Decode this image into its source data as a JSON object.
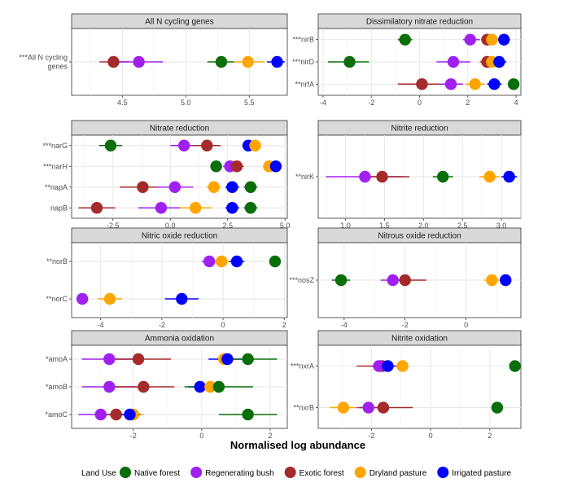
{
  "figure": {
    "xlabel": "Normalised log abundance",
    "legend_title": "Land Use",
    "colors": {
      "Native forest": "#0a6e0a",
      "Regenerating bush": "#a020f0",
      "Exotic forest": "#a52a2a",
      "Dryland pasture": "#ffa500",
      "Irrigated pasture": "#0000ff"
    }
  },
  "legend": [
    {
      "label": "Native forest"
    },
    {
      "label": "Regenerating bush"
    },
    {
      "label": "Exotic forest"
    },
    {
      "label": "Dryland pasture"
    },
    {
      "label": "Irrigated pasture"
    }
  ],
  "chart_data": [
    {
      "type": "scatter",
      "title": "All N cycling genes",
      "xlim": [
        4.1,
        5.8
      ],
      "ticks": [
        4.5,
        5.0,
        5.5
      ],
      "tick_labels": [
        "4.5",
        "5.0",
        "5.5"
      ],
      "rows": [
        {
          "label": "***All N cycling\ngenes",
          "points": [
            {
              "series": "Exotic forest",
              "value": 4.43,
              "lo": 4.32,
              "hi": 4.55
            },
            {
              "series": "Regenerating bush",
              "value": 4.63,
              "lo": 4.47,
              "hi": 4.82
            },
            {
              "series": "Native forest",
              "value": 5.28,
              "lo": 5.17,
              "hi": 5.38
            },
            {
              "series": "Dryland pasture",
              "value": 5.49,
              "lo": 5.38,
              "hi": 5.62
            },
            {
              "series": "Irrigated pasture",
              "value": 5.72,
              "lo": 5.64,
              "hi": 5.78
            }
          ]
        }
      ]
    },
    {
      "type": "scatter",
      "title": "Dissimilatory nitrate reduction",
      "xlim": [
        -4.2,
        4.2
      ],
      "ticks": [
        -4,
        -2,
        0,
        2,
        4
      ],
      "tick_labels": [
        "-4",
        "-2",
        "0",
        "2",
        "4"
      ],
      "rows": [
        {
          "label": "***nirB",
          "points": [
            {
              "series": "Native forest",
              "value": -0.6,
              "lo": -0.9,
              "hi": -0.3
            },
            {
              "series": "Regenerating bush",
              "value": 2.1,
              "lo": 1.8,
              "hi": 2.5
            },
            {
              "series": "Exotic forest",
              "value": 2.8,
              "lo": 2.55,
              "hi": 3.05
            },
            {
              "series": "Dryland pasture",
              "value": 3.0,
              "lo": 2.75,
              "hi": 3.25
            },
            {
              "series": "Irrigated pasture",
              "value": 3.5,
              "lo": 3.25,
              "hi": 3.75
            }
          ]
        },
        {
          "label": "***nirD",
          "points": [
            {
              "series": "Native forest",
              "value": -2.9,
              "lo": -3.8,
              "hi": -2.1
            },
            {
              "series": "Regenerating bush",
              "value": 1.4,
              "lo": 0.7,
              "hi": 2.1
            },
            {
              "series": "Exotic forest",
              "value": 2.8,
              "lo": 2.5,
              "hi": 3.1
            },
            {
              "series": "Dryland pasture",
              "value": 3.0,
              "lo": 2.7,
              "hi": 3.3
            },
            {
              "series": "Irrigated pasture",
              "value": 3.3,
              "lo": 3.0,
              "hi": 3.6
            }
          ]
        },
        {
          "label": "**nrfA",
          "points": [
            {
              "series": "Exotic forest",
              "value": 0.1,
              "lo": -0.9,
              "hi": 1.1
            },
            {
              "series": "Regenerating bush",
              "value": 1.3,
              "lo": 0.8,
              "hi": 1.8
            },
            {
              "series": "Dryland pasture",
              "value": 2.3,
              "lo": 1.9,
              "hi": 2.7
            },
            {
              "series": "Irrigated pasture",
              "value": 3.1,
              "lo": 2.8,
              "hi": 3.4
            },
            {
              "series": "Native forest",
              "value": 3.9,
              "lo": 3.7,
              "hi": 4.0
            }
          ]
        }
      ]
    },
    {
      "type": "scatter",
      "title": "Nitrate reduction",
      "xlim": [
        -4.3,
        5.1
      ],
      "ticks": [
        -2.5,
        0.0,
        2.5,
        5.0
      ],
      "tick_labels": [
        "-2.5",
        "0.0",
        "2.5",
        "5.0"
      ],
      "rows": [
        {
          "label": "***narG",
          "points": [
            {
              "series": "Native forest",
              "value": -2.6,
              "lo": -3.1,
              "hi": -2.1
            },
            {
              "series": "Regenerating bush",
              "value": 0.6,
              "lo": 0.0,
              "hi": 1.3
            },
            {
              "series": "Exotic forest",
              "value": 1.6,
              "lo": 1.0,
              "hi": 2.2
            },
            {
              "series": "Irrigated pasture",
              "value": 3.4,
              "lo": 3.2,
              "hi": 3.6
            },
            {
              "series": "Dryland pasture",
              "value": 3.7,
              "lo": 3.5,
              "hi": 3.9
            }
          ]
        },
        {
          "label": "***narH",
          "points": [
            {
              "series": "Native forest",
              "value": 2.0,
              "lo": 1.8,
              "hi": 2.2
            },
            {
              "series": "Regenerating bush",
              "value": 2.6,
              "lo": 2.3,
              "hi": 2.9
            },
            {
              "series": "Exotic forest",
              "value": 2.9,
              "lo": 2.6,
              "hi": 3.2
            },
            {
              "series": "Dryland pasture",
              "value": 4.3,
              "lo": 4.1,
              "hi": 4.5
            },
            {
              "series": "Irrigated pasture",
              "value": 4.6,
              "lo": 4.4,
              "hi": 4.8
            }
          ]
        },
        {
          "label": "**napA",
          "points": [
            {
              "series": "Exotic forest",
              "value": -1.2,
              "lo": -2.2,
              "hi": -0.2
            },
            {
              "series": "Regenerating bush",
              "value": 0.2,
              "lo": -0.6,
              "hi": 1.0
            },
            {
              "series": "Dryland pasture",
              "value": 1.9,
              "lo": 1.6,
              "hi": 2.2
            },
            {
              "series": "Irrigated pasture",
              "value": 2.7,
              "lo": 2.4,
              "hi": 3.0
            },
            {
              "series": "Native forest",
              "value": 3.5,
              "lo": 3.2,
              "hi": 3.8
            }
          ]
        },
        {
          "label": "napB",
          "points": [
            {
              "series": "Exotic forest",
              "value": -3.2,
              "lo": -4.0,
              "hi": -2.4
            },
            {
              "series": "Regenerating bush",
              "value": -0.4,
              "lo": -1.4,
              "hi": 0.6
            },
            {
              "series": "Dryland pasture",
              "value": 1.1,
              "lo": 0.4,
              "hi": 1.8
            },
            {
              "series": "Irrigated pasture",
              "value": 2.7,
              "lo": 2.4,
              "hi": 3.0
            },
            {
              "series": "Native forest",
              "value": 3.5,
              "lo": 3.2,
              "hi": 3.8
            }
          ]
        }
      ]
    },
    {
      "type": "scatter",
      "title": "Nitrite reduction",
      "xlim": [
        0.65,
        3.25
      ],
      "ticks": [
        1.0,
        1.5,
        2.0,
        2.5,
        3.0
      ],
      "tick_labels": [
        "1.0",
        "1.5",
        "2.0",
        "2.5",
        "3.0"
      ],
      "rows": [
        {
          "label": "**nirK",
          "points": [
            {
              "series": "Regenerating bush",
              "value": 1.25,
              "lo": 0.75,
              "hi": 1.75
            },
            {
              "series": "Exotic forest",
              "value": 1.47,
              "lo": 1.2,
              "hi": 1.82
            },
            {
              "series": "Native forest",
              "value": 2.25,
              "lo": 2.12,
              "hi": 2.38
            },
            {
              "series": "Dryland pasture",
              "value": 2.85,
              "lo": 2.72,
              "hi": 2.98
            },
            {
              "series": "Irrigated pasture",
              "value": 3.1,
              "lo": 3.0,
              "hi": 3.2
            }
          ]
        }
      ]
    },
    {
      "type": "scatter",
      "title": "Nitric oxide reduction",
      "xlim": [
        -4.95,
        2.1
      ],
      "ticks": [
        -4,
        -2,
        0,
        2
      ],
      "tick_labels": [
        "-4",
        "-2",
        "0",
        "2"
      ],
      "rows": [
        {
          "label": "**norB",
          "points": [
            {
              "series": "Regenerating bush",
              "value": -0.45,
              "lo": -0.7,
              "hi": -0.2
            },
            {
              "series": "Dryland pasture",
              "value": -0.05,
              "lo": -0.3,
              "hi": 0.2
            },
            {
              "series": "Irrigated pasture",
              "value": 0.45,
              "lo": 0.2,
              "hi": 0.7
            },
            {
              "series": "Native forest",
              "value": 1.7,
              "lo": 1.6,
              "hi": 1.8
            }
          ]
        },
        {
          "label": "**norC",
          "points": [
            {
              "series": "Regenerating bush",
              "value": -4.6,
              "lo": -4.75,
              "hi": -4.45
            },
            {
              "series": "Dryland pasture",
              "value": -3.7,
              "lo": -4.1,
              "hi": -3.3
            },
            {
              "series": "Irrigated pasture",
              "value": -1.35,
              "lo": -1.9,
              "hi": -0.8
            }
          ]
        }
      ]
    },
    {
      "type": "scatter",
      "title": "Nitrous oxide reduction",
      "xlim": [
        -4.85,
        1.8
      ],
      "ticks": [
        -4,
        -2,
        0
      ],
      "tick_labels": [
        "-4",
        "-2",
        "0"
      ],
      "rows": [
        {
          "label": "***nosZ",
          "points": [
            {
              "series": "Native forest",
              "value": -4.1,
              "lo": -4.4,
              "hi": -3.8
            },
            {
              "series": "Regenerating bush",
              "value": -2.4,
              "lo": -2.8,
              "hi": -2.0
            },
            {
              "series": "Exotic forest",
              "value": -2.0,
              "lo": -2.6,
              "hi": -1.3
            },
            {
              "series": "Dryland pasture",
              "value": 0.85,
              "lo": 0.6,
              "hi": 1.1
            },
            {
              "series": "Irrigated pasture",
              "value": 1.3,
              "lo": 1.15,
              "hi": 1.45
            }
          ]
        }
      ]
    },
    {
      "type": "scatter",
      "title": "Ammonia oxidation",
      "xlim": [
        -3.8,
        2.5
      ],
      "ticks": [
        -2,
        0,
        2
      ],
      "tick_labels": [
        "-2",
        "0",
        "2"
      ],
      "rows": [
        {
          "label": "*amoA",
          "points": [
            {
              "series": "Regenerating bush",
              "value": -2.7,
              "lo": -3.5,
              "hi": -1.9
            },
            {
              "series": "Exotic forest",
              "value": -1.85,
              "lo": -2.8,
              "hi": -0.9
            },
            {
              "series": "Dryland pasture",
              "value": 0.65,
              "lo": 0.45,
              "hi": 0.85
            },
            {
              "series": "Irrigated pasture",
              "value": 0.75,
              "lo": 0.2,
              "hi": 1.3
            },
            {
              "series": "Native forest",
              "value": 1.35,
              "lo": 0.5,
              "hi": 2.2
            }
          ]
        },
        {
          "label": "*amoB",
          "points": [
            {
              "series": "Regenerating bush",
              "value": -2.7,
              "lo": -3.5,
              "hi": -1.9
            },
            {
              "series": "Exotic forest",
              "value": -1.7,
              "lo": -2.6,
              "hi": -0.8
            },
            {
              "series": "Irrigated pasture",
              "value": -0.05,
              "lo": -0.4,
              "hi": 0.3
            },
            {
              "series": "Dryland pasture",
              "value": 0.25,
              "lo": 0.05,
              "hi": 0.45
            },
            {
              "series": "Native forest",
              "value": 0.5,
              "lo": -0.5,
              "hi": 1.5
            }
          ]
        },
        {
          "label": "*amoC",
          "points": [
            {
              "series": "Regenerating bush",
              "value": -2.95,
              "lo": -3.6,
              "hi": -2.3
            },
            {
              "series": "Exotic forest",
              "value": -2.5,
              "lo": -3.1,
              "hi": -1.9
            },
            {
              "series": "Dryland pasture",
              "value": -2.0,
              "lo": -2.3,
              "hi": -1.7
            },
            {
              "series": "Irrigated pasture",
              "value": -2.1,
              "lo": -2.4,
              "hi": -1.8
            },
            {
              "series": "Native forest",
              "value": 1.35,
              "lo": 0.5,
              "hi": 2.2
            }
          ]
        }
      ]
    },
    {
      "type": "scatter",
      "title": "Nitrite oxidation",
      "xlim": [
        -3.8,
        3.05
      ],
      "ticks": [
        -2,
        0,
        2
      ],
      "tick_labels": [
        "-2",
        "0",
        "2"
      ],
      "rows": [
        {
          "label": "***nxrA",
          "points": [
            {
              "series": "Exotic forest",
              "value": -1.65,
              "lo": -2.5,
              "hi": -0.8
            },
            {
              "series": "Regenerating bush",
              "value": -1.75,
              "lo": -2.0,
              "hi": -1.5
            },
            {
              "series": "Irrigated pasture",
              "value": -1.45,
              "lo": -1.7,
              "hi": -1.2
            },
            {
              "series": "Dryland pasture",
              "value": -0.95,
              "lo": -1.15,
              "hi": -0.75
            },
            {
              "series": "Native forest",
              "value": 2.85,
              "lo": 2.8,
              "hi": 2.9
            }
          ]
        },
        {
          "label": "**nxrB",
          "points": [
            {
              "series": "Dryland pasture",
              "value": -2.95,
              "lo": -3.4,
              "hi": -2.5
            },
            {
              "series": "Regenerating bush",
              "value": -2.1,
              "lo": -2.5,
              "hi": -1.7
            },
            {
              "series": "Exotic forest",
              "value": -1.6,
              "lo": -2.4,
              "hi": -0.6
            },
            {
              "series": "Native forest",
              "value": 2.25,
              "lo": 2.2,
              "hi": 2.3
            }
          ]
        }
      ]
    }
  ]
}
